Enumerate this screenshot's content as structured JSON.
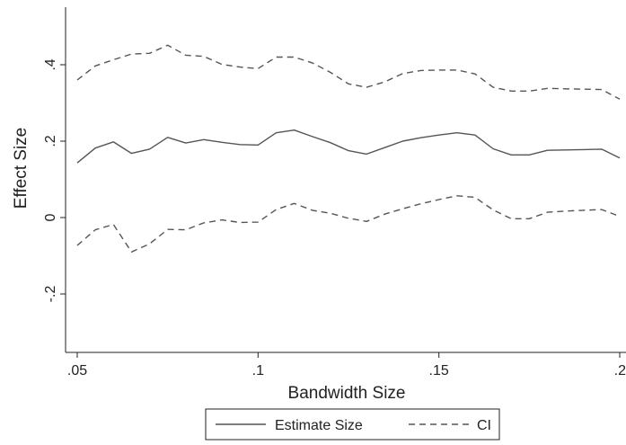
{
  "chart_data": {
    "type": "line",
    "xlabel": "Bandwidth Size",
    "ylabel": "Effect Size",
    "xlim": [
      0.05,
      0.2
    ],
    "ylim": [
      -0.2,
      0.45
    ],
    "grid": false,
    "legend_position": "bottom",
    "x_ticks": [
      {
        "value": 0.05,
        "label": ".05"
      },
      {
        "value": 0.1,
        "label": ".1"
      },
      {
        "value": 0.15,
        "label": ".15"
      },
      {
        "value": 0.2,
        "label": ".2"
      }
    ],
    "y_ticks": [
      {
        "value": -0.2,
        "label": "-.2"
      },
      {
        "value": 0,
        "label": "0"
      },
      {
        "value": 0.2,
        "label": ".2"
      },
      {
        "value": 0.4,
        "label": ".4"
      }
    ],
    "x": [
      0.05,
      0.055,
      0.06,
      0.065,
      0.07,
      0.075,
      0.08,
      0.085,
      0.09,
      0.095,
      0.1,
      0.105,
      0.11,
      0.115,
      0.12,
      0.125,
      0.13,
      0.135,
      0.14,
      0.145,
      0.15,
      0.155,
      0.16,
      0.165,
      0.17,
      0.175,
      0.18,
      0.185,
      0.19,
      0.195,
      0.2
    ],
    "series": [
      {
        "name": "Estimate Size",
        "style": "solid",
        "color": "#555555",
        "values": [
          0.143,
          0.182,
          0.198,
          0.168,
          0.179,
          0.21,
          0.195,
          0.204,
          0.197,
          0.191,
          0.19,
          0.222,
          0.229,
          0.212,
          0.196,
          0.175,
          0.166,
          0.183,
          0.2,
          0.209,
          0.216,
          0.222,
          0.216,
          0.18,
          0.164,
          0.164,
          0.176,
          0.177,
          0.178,
          0.179,
          0.156
        ]
      },
      {
        "name": "CI",
        "style": "dashed",
        "color": "#555555",
        "band": "upper",
        "values": [
          0.36,
          0.397,
          0.413,
          0.428,
          0.43,
          0.451,
          0.425,
          0.422,
          0.401,
          0.394,
          0.39,
          0.42,
          0.42,
          0.405,
          0.38,
          0.35,
          0.341,
          0.355,
          0.377,
          0.385,
          0.386,
          0.386,
          0.376,
          0.341,
          0.331,
          0.331,
          0.338,
          0.337,
          0.336,
          0.335,
          0.31
        ]
      },
      {
        "name": "CI",
        "style": "dashed",
        "color": "#555555",
        "band": "lower",
        "values": [
          -0.073,
          -0.032,
          -0.018,
          -0.09,
          -0.069,
          -0.031,
          -0.032,
          -0.014,
          -0.006,
          -0.013,
          -0.012,
          0.021,
          0.037,
          0.019,
          0.011,
          -0.002,
          -0.01,
          0.009,
          0.023,
          0.036,
          0.047,
          0.057,
          0.053,
          0.02,
          -0.003,
          -0.003,
          0.014,
          0.017,
          0.019,
          0.021,
          0.003
        ]
      }
    ],
    "legend": [
      {
        "label": "Estimate Size",
        "style": "solid"
      },
      {
        "label": "CI",
        "style": "dashed"
      }
    ]
  }
}
